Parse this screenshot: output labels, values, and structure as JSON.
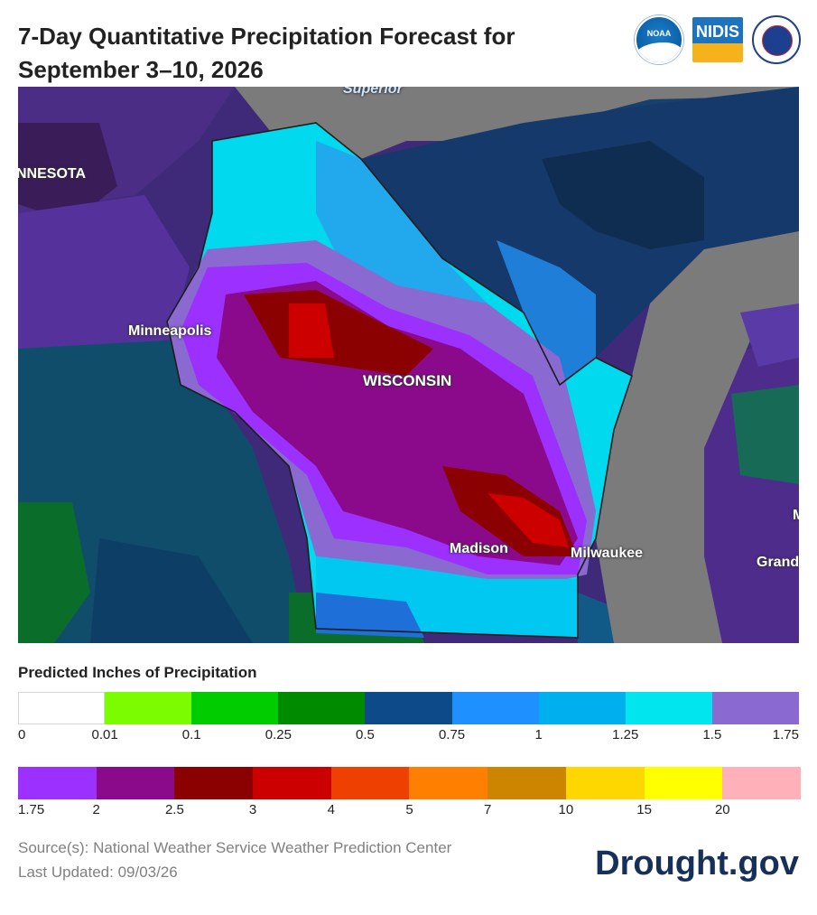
{
  "header": {
    "title_line1": "7-Day Quantitative Precipitation Forecast for",
    "title_line2": "September 3–10, 2026",
    "logos": [
      {
        "name": "noaa-logo",
        "text": "NOAA"
      },
      {
        "name": "nidis-logo",
        "text": "NIDIS"
      },
      {
        "name": "nws-logo",
        "text": ""
      }
    ]
  },
  "map": {
    "labels": {
      "superior": "Superior",
      "minnesota": "NNESOTA",
      "minneapolis": "Minneapolis",
      "wisconsin": "WISCONSIN",
      "madison": "Madison",
      "milwaukee": "Milwaukee",
      "grand": "Grand",
      "edge_m": "M"
    },
    "colors": {
      "lake": "#7b7b7b",
      "border": "#1c1c1c"
    }
  },
  "legend": {
    "title": "Predicted Inches of Precipitation",
    "row1": {
      "colors": [
        "#ffffff",
        "#7cfc00",
        "#00cc00",
        "#008a00",
        "#0d4a8a",
        "#1e90ff",
        "#00b0ee",
        "#00e5ee",
        "#8a6ad0"
      ],
      "ticks": [
        "0",
        "0.01",
        "0.1",
        "0.25",
        "0.5",
        "0.75",
        "1",
        "1.25",
        "1.5",
        "1.75"
      ]
    },
    "row2": {
      "colors": [
        "#9b30ff",
        "#8b0a8b",
        "#8b0000",
        "#cd0000",
        "#ee4000",
        "#ff8000",
        "#cd8500",
        "#ffd700",
        "#ffff00",
        "#ffb0b8"
      ],
      "ticks": [
        "1.75",
        "2",
        "2.5",
        "3",
        "4",
        "5",
        "7",
        "10",
        "15",
        "20"
      ]
    }
  },
  "footer": {
    "source": "Source(s): National Weather Service Weather Prediction Center",
    "updated": "Last Updated: 09/03/26",
    "brand": "Drought.gov"
  }
}
